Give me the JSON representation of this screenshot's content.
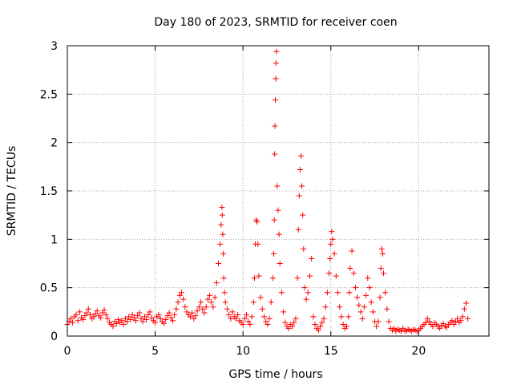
{
  "chart_data": {
    "type": "scatter",
    "title": "Day 180 of 2023, SRMTID for receiver coen",
    "xlabel": "GPS time / hours",
    "ylabel": "SRMTID / TECUs",
    "xlim": [
      0,
      24
    ],
    "ylim": [
      0,
      3
    ],
    "x_ticks": [
      0,
      5,
      10,
      15,
      20
    ],
    "x_tick_labels": [
      "0",
      "5",
      "10",
      "15",
      "20"
    ],
    "y_ticks": [
      0,
      0.5,
      1,
      1.5,
      2,
      2.5,
      3
    ],
    "y_tick_labels": [
      "0",
      "0.5",
      "1",
      "1.5",
      "2",
      "2.5",
      "3"
    ],
    "grid": true,
    "marker": "+",
    "colors": {
      "series": "#ff0000",
      "grid": "#a0a0a0",
      "axis": "#000000"
    },
    "series": [
      {
        "name": "SRMTID",
        "x": [
          0.0,
          0.1,
          0.2,
          0.3,
          0.4,
          0.5,
          0.6,
          0.7,
          0.8,
          0.9,
          1.0,
          1.1,
          1.2,
          1.3,
          1.4,
          1.5,
          1.6,
          1.7,
          1.8,
          1.9,
          2.0,
          2.1,
          2.2,
          2.3,
          2.4,
          2.5,
          2.6,
          2.7,
          2.8,
          2.9,
          3.0,
          3.1,
          3.2,
          3.3,
          3.4,
          3.5,
          3.6,
          3.7,
          3.8,
          3.9,
          4.0,
          4.1,
          4.2,
          4.3,
          4.4,
          4.5,
          4.6,
          4.7,
          4.8,
          4.9,
          5.0,
          5.1,
          5.2,
          5.3,
          5.4,
          5.5,
          5.6,
          5.7,
          5.8,
          5.9,
          6.0,
          6.1,
          6.2,
          6.3,
          6.4,
          6.5,
          6.6,
          6.7,
          6.8,
          6.9,
          7.0,
          7.1,
          7.2,
          7.3,
          7.4,
          7.5,
          7.6,
          7.7,
          7.8,
          7.9,
          8.0,
          8.1,
          8.2,
          8.3,
          8.4,
          8.5,
          8.6,
          8.7,
          8.75,
          8.8,
          8.82,
          8.85,
          8.88,
          8.9,
          8.95,
          9.0,
          9.1,
          9.2,
          9.3,
          9.4,
          9.5,
          9.6,
          9.7,
          9.8,
          9.9,
          10.0,
          10.1,
          10.2,
          10.3,
          10.4,
          10.5,
          10.6,
          10.65,
          10.7,
          10.75,
          10.8,
          10.85,
          10.9,
          11.0,
          11.1,
          11.2,
          11.3,
          11.4,
          11.5,
          11.6,
          11.7,
          11.75,
          11.78,
          11.8,
          11.82,
          11.84,
          11.86,
          11.88,
          11.9,
          11.95,
          12.0,
          12.05,
          12.1,
          12.2,
          12.3,
          12.4,
          12.5,
          12.6,
          12.7,
          12.8,
          12.9,
          13.0,
          13.1,
          13.15,
          13.2,
          13.25,
          13.3,
          13.35,
          13.4,
          13.45,
          13.5,
          13.6,
          13.7,
          13.8,
          13.9,
          14.0,
          14.1,
          14.2,
          14.3,
          14.4,
          14.5,
          14.6,
          14.7,
          14.8,
          14.9,
          14.95,
          15.0,
          15.05,
          15.1,
          15.2,
          15.3,
          15.4,
          15.5,
          15.6,
          15.7,
          15.8,
          15.9,
          16.0,
          16.05,
          16.1,
          16.2,
          16.3,
          16.4,
          16.5,
          16.6,
          16.7,
          16.8,
          16.9,
          17.0,
          17.1,
          17.2,
          17.3,
          17.4,
          17.5,
          17.6,
          17.7,
          17.8,
          17.85,
          17.9,
          17.95,
          18.0,
          18.1,
          18.2,
          18.3,
          18.4,
          18.5,
          18.6,
          18.7,
          18.8,
          18.9,
          19.0,
          19.1,
          19.2,
          19.3,
          19.4,
          19.5,
          19.6,
          19.7,
          19.8,
          19.9,
          20.0,
          20.1,
          20.2,
          20.3,
          20.4,
          20.5,
          20.6,
          20.7,
          20.8,
          20.9,
          21.0,
          21.1,
          21.2,
          21.3,
          21.4,
          21.5,
          21.6,
          21.7,
          21.8,
          21.9,
          22.0,
          22.1,
          22.2,
          22.3,
          22.4,
          22.5,
          22.6,
          22.7,
          22.8
        ],
        "y": [
          0.12,
          0.15,
          0.18,
          0.14,
          0.2,
          0.22,
          0.16,
          0.25,
          0.19,
          0.17,
          0.21,
          0.24,
          0.28,
          0.22,
          0.18,
          0.2,
          0.23,
          0.26,
          0.21,
          0.19,
          0.24,
          0.27,
          0.22,
          0.18,
          0.14,
          0.12,
          0.1,
          0.15,
          0.13,
          0.17,
          0.14,
          0.16,
          0.12,
          0.18,
          0.15,
          0.2,
          0.17,
          0.22,
          0.19,
          0.16,
          0.21,
          0.24,
          0.18,
          0.15,
          0.2,
          0.17,
          0.22,
          0.25,
          0.19,
          0.16,
          0.14,
          0.2,
          0.22,
          0.18,
          0.15,
          0.13,
          0.17,
          0.21,
          0.24,
          0.19,
          0.16,
          0.22,
          0.28,
          0.35,
          0.42,
          0.45,
          0.38,
          0.3,
          0.25,
          0.22,
          0.2,
          0.24,
          0.18,
          0.21,
          0.26,
          0.3,
          0.35,
          0.28,
          0.24,
          0.3,
          0.38,
          0.42,
          0.35,
          0.3,
          0.4,
          0.55,
          0.75,
          0.95,
          1.15,
          1.33,
          1.25,
          1.05,
          0.85,
          0.6,
          0.45,
          0.35,
          0.28,
          0.22,
          0.18,
          0.25,
          0.2,
          0.18,
          0.22,
          0.16,
          0.14,
          0.12,
          0.18,
          0.22,
          0.15,
          0.12,
          0.2,
          0.35,
          0.6,
          0.95,
          1.2,
          1.18,
          0.95,
          0.62,
          0.4,
          0.28,
          0.2,
          0.15,
          0.12,
          0.18,
          0.35,
          0.6,
          0.85,
          1.2,
          1.88,
          2.17,
          2.44,
          2.66,
          2.82,
          2.94,
          1.55,
          1.3,
          1.05,
          0.75,
          0.45,
          0.25,
          0.14,
          0.1,
          0.08,
          0.12,
          0.1,
          0.14,
          0.18,
          0.6,
          1.1,
          1.45,
          1.72,
          1.86,
          1.55,
          1.25,
          0.9,
          0.5,
          0.38,
          0.45,
          0.62,
          0.8,
          0.2,
          0.12,
          0.08,
          0.06,
          0.1,
          0.14,
          0.18,
          0.3,
          0.45,
          0.65,
          0.8,
          0.95,
          1.08,
          1.0,
          0.85,
          0.62,
          0.45,
          0.3,
          0.2,
          0.12,
          0.08,
          0.1,
          0.2,
          0.45,
          0.7,
          0.88,
          0.65,
          0.5,
          0.4,
          0.32,
          0.25,
          0.18,
          0.3,
          0.42,
          0.6,
          0.5,
          0.35,
          0.25,
          0.15,
          0.1,
          0.15,
          0.4,
          0.7,
          0.9,
          0.85,
          0.65,
          0.45,
          0.28,
          0.15,
          0.08,
          0.06,
          0.08,
          0.05,
          0.07,
          0.06,
          0.05,
          0.08,
          0.06,
          0.05,
          0.07,
          0.06,
          0.05,
          0.07,
          0.06,
          0.05,
          0.06,
          0.08,
          0.1,
          0.12,
          0.14,
          0.18,
          0.15,
          0.12,
          0.1,
          0.14,
          0.12,
          0.1,
          0.08,
          0.11,
          0.13,
          0.1,
          0.09,
          0.12,
          0.14,
          0.16,
          0.12,
          0.15,
          0.18,
          0.14,
          0.16,
          0.2,
          0.28,
          0.34,
          0.18
        ]
      }
    ]
  }
}
